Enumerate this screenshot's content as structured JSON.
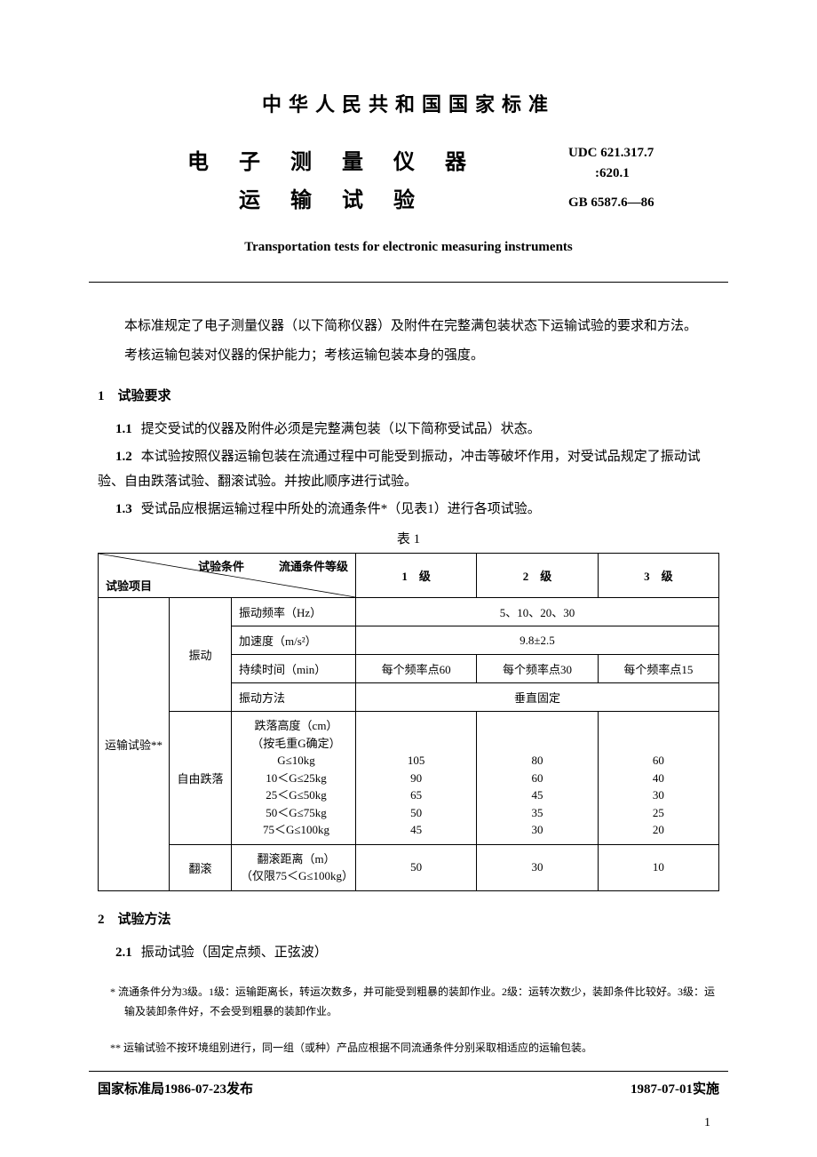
{
  "org_title": "中华人民共和国国家标准",
  "codes": {
    "udc_line1": "UDC 621.317.7",
    "udc_line2": ":620.1",
    "gb": "GB 6587.6—86"
  },
  "doc_title": "电 子 测 量 仪 器",
  "doc_subtitle": "运 输 试 验",
  "en_title": "Transportation tests for electronic measuring instruments",
  "intro_p1": "本标准规定了电子测量仪器（以下简称仪器）及附件在完整满包装状态下运输试验的要求和方法。",
  "intro_p2": "考核运输包装对仪器的保护能力；考核运输包装本身的强度。",
  "sec1": {
    "title": "1　试验要求",
    "i1_num": "1.1",
    "i1": "提交受试的仪器及附件必须是完整满包装（以下简称受试品）状态。",
    "i2_num": "1.2",
    "i2": "本试验按照仪器运输包装在流通过程中可能受到振动，冲击等破坏作用，对受试品规定了振动试验、自由跌落试验、翻滚试验。并按此顺序进行试验。",
    "i3_num": "1.3",
    "i3": "受试品应根据运输过程中所处的流通条件*（见表1）进行各项试验。"
  },
  "table": {
    "caption": "表 1",
    "diag_top": "流通条件等级",
    "diag_bot": "试验项目",
    "col_test_cond": "试验条件",
    "col_l1": "1　级",
    "col_l2": "2　级",
    "col_l3": "3　级",
    "row_group": "运输试验**",
    "vib": {
      "label": "振动",
      "r1_label": "振动频率（Hz）",
      "r1_val": "5、10、20、30",
      "r2_label": "加速度（m/s²）",
      "r2_val": "9.8±2.5",
      "r3_label": "持续时间（min）",
      "r3_v1": "每个频率点60",
      "r3_v2": "每个频率点30",
      "r3_v3": "每个频率点15",
      "r4_label": "振动方法",
      "r4_val": "垂直固定"
    },
    "drop": {
      "label": "自由跌落",
      "param_header": "跌落高度（cm）\n（按毛重G确定）",
      "rows": [
        {
          "cond": "G≤10kg",
          "v1": "105",
          "v2": "80",
          "v3": "60"
        },
        {
          "cond": "10＜G≤25kg",
          "v1": "90",
          "v2": "60",
          "v3": "40"
        },
        {
          "cond": "25＜G≤50kg",
          "v1": "65",
          "v2": "45",
          "v3": "30"
        },
        {
          "cond": "50＜G≤75kg",
          "v1": "50",
          "v2": "35",
          "v3": "25"
        },
        {
          "cond": "75＜G≤100kg",
          "v1": "45",
          "v2": "30",
          "v3": "20"
        }
      ]
    },
    "roll": {
      "label": "翻滚",
      "param": "翻滚距离（m）\n（仅限75＜G≤100kg）",
      "v1": "50",
      "v2": "30",
      "v3": "10"
    }
  },
  "sec2": {
    "title": "2　试验方法",
    "i1_num": "2.1",
    "i1": "振动试验（固定点频、正弦波）"
  },
  "footnotes": {
    "f1": "* 流通条件分为3级。1级：运输距离长，转运次数多，并可能受到粗暴的装卸作业。2级：运转次数少，装卸条件比较好。3级：运输及装卸条件好，不会受到粗暴的装卸作业。",
    "f2": "** 运输试验不按环境组别进行，同一组（或种）产品应根据不同流通条件分别采取相适应的运输包装。"
  },
  "footer": {
    "left": "国家标准局1986-07-23发布",
    "right": "1987-07-01实施"
  },
  "page_number": "1"
}
